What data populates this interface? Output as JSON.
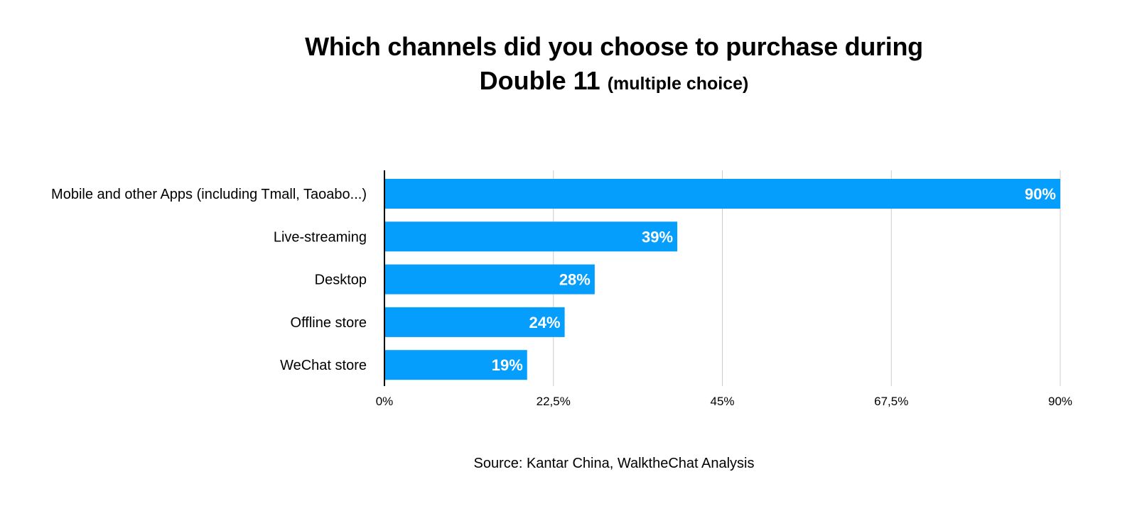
{
  "chart_data": {
    "type": "bar",
    "orientation": "horizontal",
    "title": "Which channels did you choose to purchase during",
    "title_line2": "Double 11",
    "subtitle": "(multiple choice)",
    "categories": [
      "Mobile and other Apps (including Tmall, Taoabo...)",
      "Live-streaming",
      "Desktop",
      "Offline store",
      "WeChat store"
    ],
    "values": [
      90,
      39,
      28,
      24,
      19
    ],
    "value_labels": [
      "90%",
      "39%",
      "28%",
      "24%",
      "19%"
    ],
    "xlim": [
      0,
      90
    ],
    "xticks": [
      0,
      22.5,
      45,
      67.5,
      90
    ],
    "xtick_labels": [
      "0%",
      "22,5%",
      "45%",
      "67,5%",
      "90%"
    ],
    "grid": true,
    "legend": false,
    "bar_color": "#069EFC",
    "grid_color": "#CCCCCC",
    "label_color": "#FFFFFF",
    "source": "Source: Kantar China, WalktheChat Analysis"
  }
}
